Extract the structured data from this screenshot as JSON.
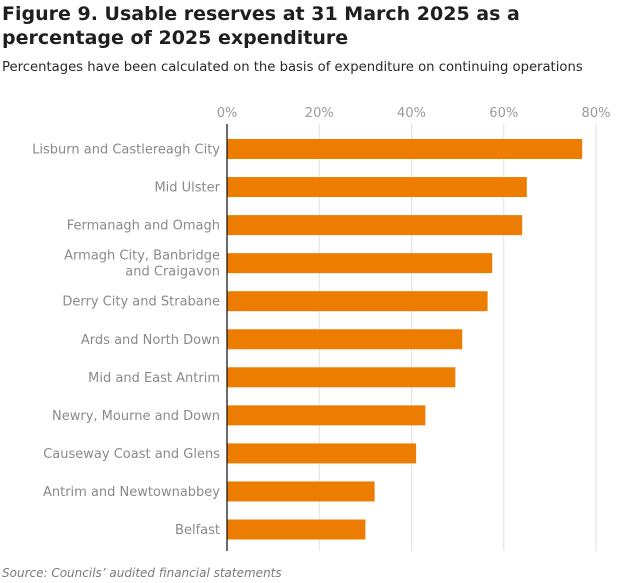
{
  "title": "Figure 9. Usable reserves at 31 March 2025 as a percentage of 2025 expenditure",
  "subtitle": "Percentages have been calculated on the basis of expenditure on continuing operations",
  "source": "Source: Councils’ audited financial statements",
  "colors": {
    "bar": "#ed7d00",
    "gridline": "#e1e1e1",
    "axis": "#1a1a1a"
  },
  "chart_data": {
    "type": "bar",
    "orientation": "horizontal",
    "categories": [
      "Lisburn and Castlereagh City",
      "Mid Ulster",
      "Fermanagh and Omagh",
      "Armagh City, Banbridge and Craigavon",
      "Derry City and Strabane",
      "Ards and North Down",
      "Mid and East Antrim",
      "Newry, Mourne and Down",
      "Causeway Coast and Glens",
      "Antrim and Newtownabbey",
      "Belfast"
    ],
    "category_label_lines": [
      [
        "Lisburn and Castlereagh City"
      ],
      [
        "Mid Ulster"
      ],
      [
        "Fermanagh and Omagh"
      ],
      [
        "Armagh City, Banbridge",
        "and Craigavon"
      ],
      [
        "Derry City and Strabane"
      ],
      [
        "Ards and North Down"
      ],
      [
        "Mid and East Antrim"
      ],
      [
        "Newry, Mourne and Down"
      ],
      [
        "Causeway Coast and Glens"
      ],
      [
        "Antrim and Newtownabbey"
      ],
      [
        "Belfast"
      ]
    ],
    "values": [
      77,
      65,
      64,
      57.5,
      56.5,
      51,
      49.5,
      43,
      41,
      32,
      30
    ],
    "xlim": [
      0,
      80
    ],
    "x_ticks": [
      0,
      20,
      40,
      60,
      80
    ],
    "x_tick_labels": [
      "0%",
      "20%",
      "40%",
      "60%",
      "80%"
    ],
    "axis_position": "top",
    "grid": true,
    "legend": "none"
  }
}
